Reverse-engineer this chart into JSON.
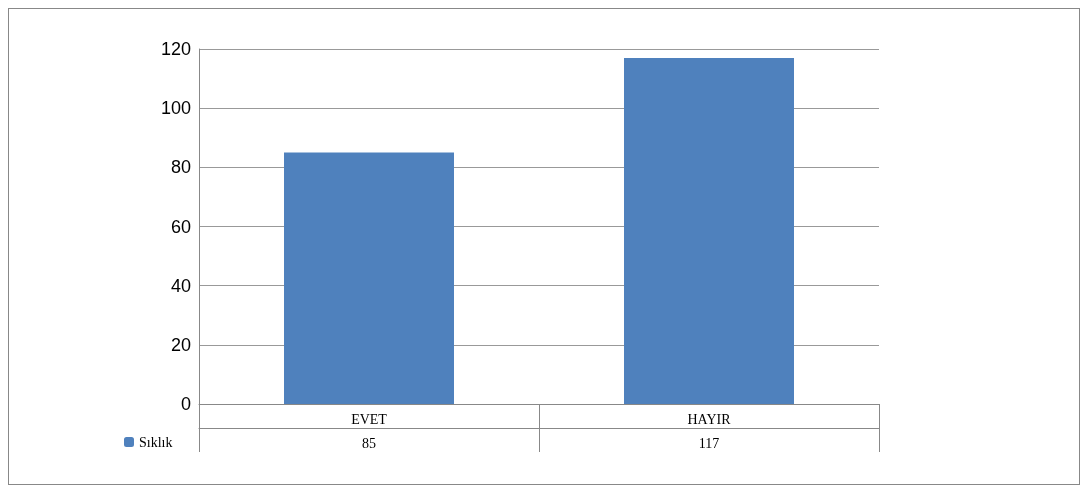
{
  "chart_data": {
    "type": "bar",
    "categories": [
      "EVET",
      "HAYIR"
    ],
    "series": [
      {
        "name": "Sıklık",
        "color": "#4f81bd",
        "values": [
          85,
          117
        ]
      }
    ],
    "ylim": [
      0,
      120
    ],
    "yticks": [
      0,
      20,
      40,
      60,
      80,
      100,
      120
    ],
    "grid": "y",
    "legend": "bottom left",
    "data_labels": true
  }
}
